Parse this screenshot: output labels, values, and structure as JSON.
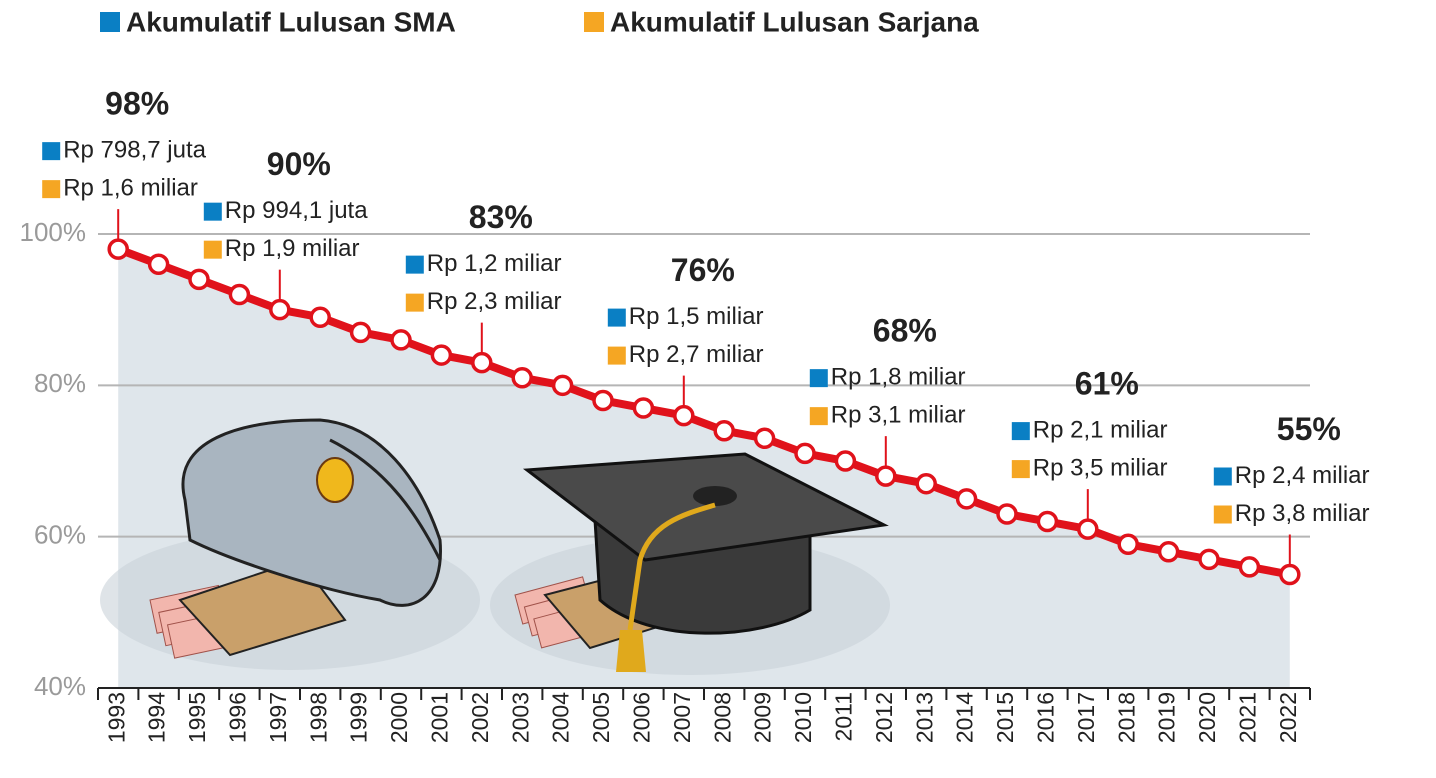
{
  "chart_data": {
    "type": "line",
    "legend": [
      {
        "name": "Akumulatif Lulusan SMA",
        "color": "#0a7fc4"
      },
      {
        "name": "Akumulatif Lulusan Sarjana",
        "color": "#f5a623"
      }
    ],
    "categories": [
      "1993",
      "1994",
      "1995",
      "1996",
      "1997",
      "1998",
      "1999",
      "2000",
      "2001",
      "2002",
      "2003",
      "2004",
      "2005",
      "2006",
      "2007",
      "2008",
      "2009",
      "2010",
      "2011",
      "2012",
      "2013",
      "2014",
      "2015",
      "2016",
      "2017",
      "2018",
      "2019",
      "2020",
      "2021",
      "2022"
    ],
    "values": [
      98,
      96,
      94,
      92,
      90,
      89,
      87,
      86,
      84,
      83,
      81,
      80,
      78,
      77,
      76,
      74,
      73,
      71,
      70,
      68,
      67,
      65,
      63,
      62,
      61,
      59,
      58,
      57,
      56,
      55
    ],
    "value_labels": [
      "98%",
      null,
      null,
      null,
      "90%",
      null,
      null,
      null,
      null,
      "83%",
      null,
      null,
      null,
      null,
      "76%",
      null,
      null,
      null,
      null,
      "68%",
      null,
      null,
      null,
      null,
      "61%",
      null,
      null,
      null,
      null,
      "55%"
    ],
    "sma_labels": [
      "Rp 798,7 juta",
      null,
      null,
      null,
      "Rp 994,1 juta",
      null,
      null,
      null,
      null,
      "Rp 1,2 miliar",
      null,
      null,
      null,
      null,
      "Rp 1,5 miliar",
      null,
      null,
      null,
      null,
      "Rp 1,8 miliar",
      null,
      null,
      null,
      null,
      "Rp 2,1 miliar",
      null,
      null,
      null,
      null,
      "Rp 2,4 miliar"
    ],
    "sarjana_labels": [
      "Rp 1,6 miliar",
      null,
      null,
      null,
      "Rp 1,9 miliar",
      null,
      null,
      null,
      null,
      "Rp 2,3 miliar",
      null,
      null,
      null,
      null,
      "Rp 2,7 miliar",
      null,
      null,
      null,
      null,
      "Rp 3,1 miliar",
      null,
      null,
      null,
      null,
      "Rp 3,5 miliar",
      null,
      null,
      null,
      null,
      "Rp 3,8 miliar"
    ],
    "color": "#e0121b",
    "area_color": "#dfe6eb",
    "ylim": [
      40,
      100
    ],
    "yticks": [
      {
        "value": 40,
        "label": "40%"
      },
      {
        "value": 60,
        "label": "60%"
      },
      {
        "value": 80,
        "label": "80%"
      },
      {
        "value": 100,
        "label": "100%"
      }
    ],
    "grid": true
  }
}
